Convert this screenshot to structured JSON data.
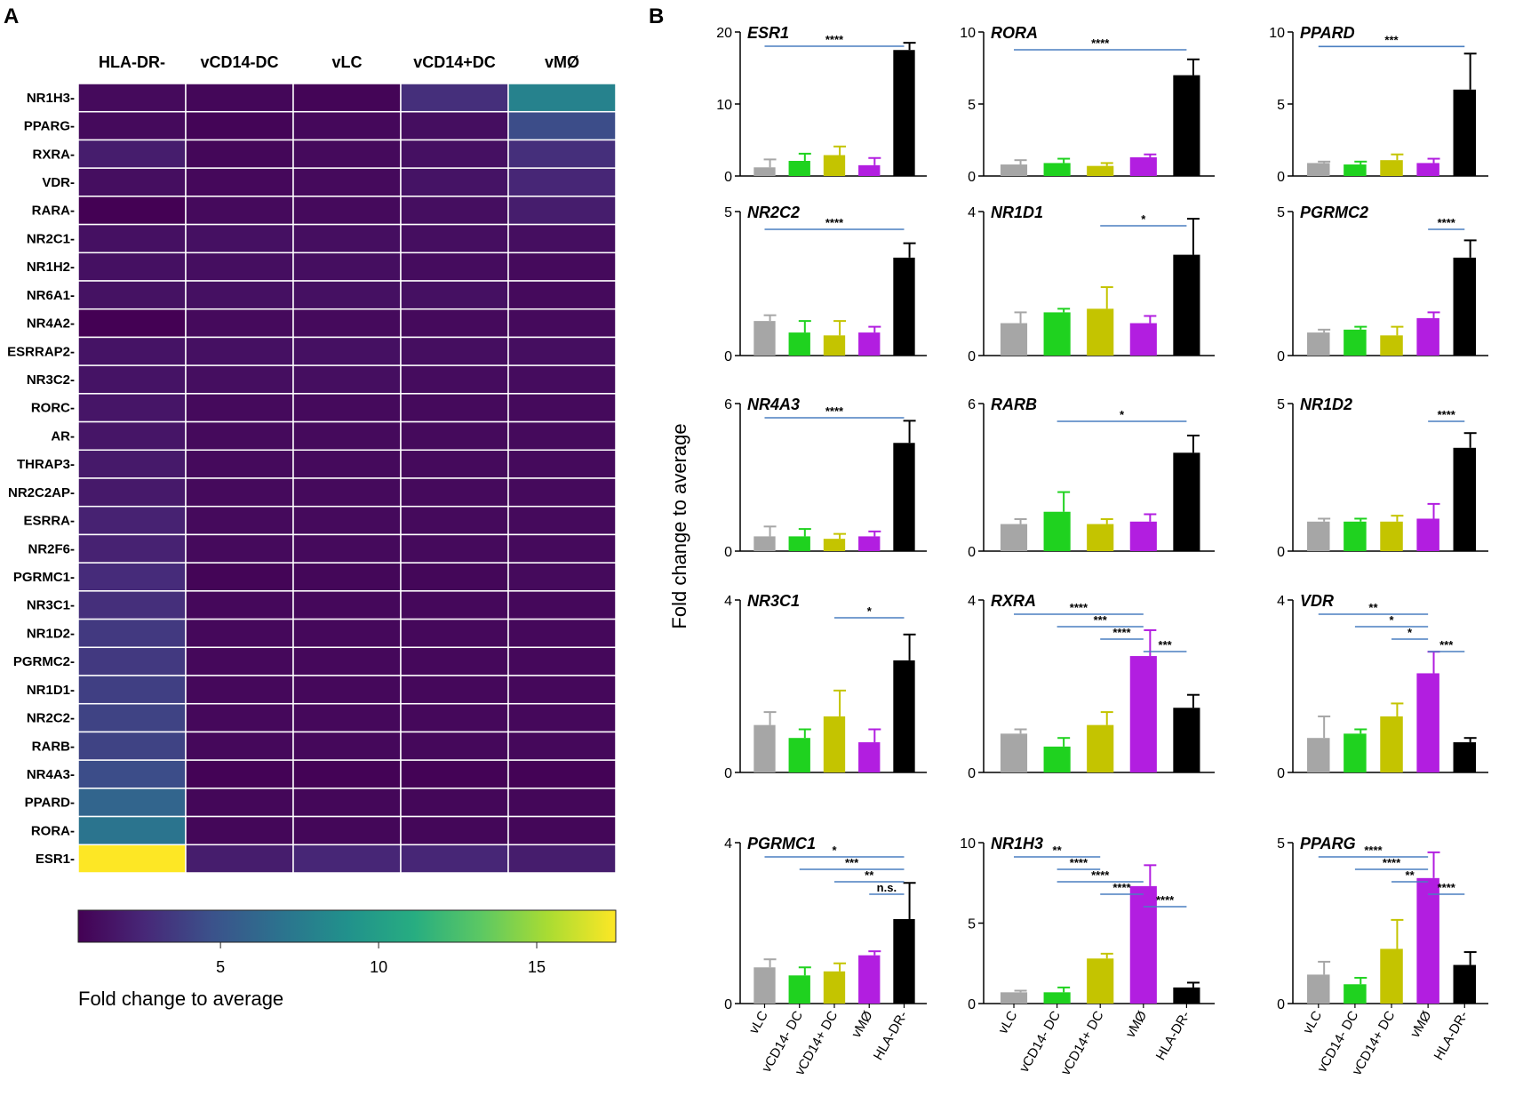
{
  "panel_a": {
    "letter": "A",
    "columns": [
      "HLA-DR-",
      "vCD14-DC",
      "vLC",
      "vCD14+DC",
      "vMØ"
    ],
    "colorbar": {
      "ticks": [
        "5",
        "10",
        "15"
      ],
      "label": "Fold change to average",
      "min": 0.5,
      "max": 17.5
    }
  },
  "panel_b": {
    "letter": "B",
    "y_label": "Fold change to average",
    "x_categories": [
      "vLC",
      "vCD14- DC",
      "vCD14+ DC",
      "vMØ",
      "HLA-DR-"
    ],
    "bar_colors": [
      "#a6a6a6",
      "#1fd21f",
      "#c4c400",
      "#b21ee0",
      "#000000"
    ]
  },
  "colors": {
    "bracket": "#4a7fc1",
    "grid_line": "#ffffff",
    "axis": "#000000"
  },
  "chart_data": [
    {
      "type": "heatmap",
      "title": "A",
      "columns": [
        "HLA-DR-",
        "vCD14-DC",
        "vLC",
        "vCD14+DC",
        "vMØ"
      ],
      "rows": [
        "NR1H3",
        "PPARG",
        "RXRA",
        "VDR",
        "RARA",
        "NR2C1",
        "NR1H2",
        "NR6A1",
        "NR4A2",
        "ESRRAP2",
        "NR3C2",
        "RORC",
        "AR",
        "THRAP3",
        "NR2C2AP",
        "ESRRA",
        "NR2F6",
        "PGRMC1",
        "NR3C1",
        "NR1D2",
        "PGRMC2",
        "NR1D1",
        "NR2C2",
        "RARB",
        "NR4A3",
        "PPARD",
        "RORA",
        "ESR1"
      ],
      "values": [
        [
          1.0,
          0.8,
          0.7,
          3.0,
          8.0
        ],
        [
          1.0,
          0.7,
          0.9,
          1.2,
          4.5
        ],
        [
          2.0,
          0.8,
          1.0,
          1.3,
          3.0
        ],
        [
          1.2,
          0.9,
          1.0,
          1.5,
          2.5
        ],
        [
          0.5,
          1.0,
          1.0,
          1.2,
          2.0
        ],
        [
          1.3,
          1.3,
          1.2,
          1.2,
          1.2
        ],
        [
          1.3,
          1.2,
          1.2,
          1.1,
          1.0
        ],
        [
          1.4,
          1.3,
          1.3,
          1.3,
          1.0
        ],
        [
          0.5,
          1.0,
          1.0,
          1.0,
          1.0
        ],
        [
          1.5,
          1.3,
          1.3,
          1.2,
          1.2
        ],
        [
          1.5,
          1.2,
          1.2,
          1.1,
          1.1
        ],
        [
          1.6,
          1.0,
          1.0,
          1.0,
          1.0
        ],
        [
          1.6,
          1.0,
          1.0,
          1.0,
          1.0
        ],
        [
          1.8,
          1.0,
          1.0,
          1.0,
          1.0
        ],
        [
          1.8,
          1.0,
          1.0,
          1.0,
          1.0
        ],
        [
          2.3,
          1.0,
          1.0,
          1.0,
          1.0
        ],
        [
          2.3,
          1.0,
          1.0,
          1.0,
          1.0
        ],
        [
          2.8,
          0.7,
          0.8,
          0.8,
          1.0
        ],
        [
          3.0,
          0.9,
          0.9,
          0.9,
          0.9
        ],
        [
          3.5,
          0.9,
          0.9,
          0.9,
          0.9
        ],
        [
          3.5,
          0.9,
          0.9,
          0.9,
          0.9
        ],
        [
          3.8,
          0.9,
          0.9,
          0.9,
          0.9
        ],
        [
          4.0,
          0.9,
          0.9,
          0.9,
          0.9
        ],
        [
          4.0,
          0.9,
          0.9,
          0.9,
          0.9
        ],
        [
          4.5,
          0.6,
          0.6,
          0.6,
          0.6
        ],
        [
          6.0,
          0.8,
          0.8,
          0.8,
          0.8
        ],
        [
          7.0,
          0.8,
          0.8,
          0.8,
          0.8
        ],
        [
          17.5,
          2.0,
          2.5,
          2.5,
          2.0
        ]
      ],
      "colorbar": {
        "ticks": [
          5,
          10,
          15
        ],
        "label": "Fold change to average"
      }
    },
    {
      "type": "bar",
      "title": "B",
      "categories": [
        "vLC",
        "vCD14- DC",
        "vCD14+ DC",
        "vMØ",
        "HLA-DR-"
      ],
      "ylabel": "Fold change to average",
      "panels": [
        {
          "gene": "ESR1",
          "ylim": [
            0,
            20
          ],
          "yticks": [
            0,
            10,
            20
          ],
          "values": [
            1.2,
            2.1,
            2.9,
            1.5,
            17.5
          ],
          "errors": [
            1.1,
            1.0,
            1.2,
            1.0,
            1.0
          ],
          "sig": [
            {
              "from": 0,
              "to": 4,
              "label": "****"
            }
          ]
        },
        {
          "gene": "RORA",
          "ylim": [
            0,
            10
          ],
          "yticks": [
            0,
            5,
            10
          ],
          "values": [
            0.8,
            0.9,
            0.7,
            1.3,
            7.0
          ],
          "errors": [
            0.3,
            0.3,
            0.2,
            0.2,
            1.1
          ],
          "sig": [
            {
              "from": 0,
              "to": 4,
              "label": "****"
            }
          ]
        },
        {
          "gene": "PPARD",
          "ylim": [
            0,
            10
          ],
          "yticks": [
            0,
            5,
            10
          ],
          "values": [
            0.9,
            0.8,
            1.1,
            0.9,
            6.0
          ],
          "errors": [
            0.1,
            0.2,
            0.4,
            0.3,
            2.5
          ],
          "sig": [
            {
              "from": 0,
              "to": 4,
              "label": "***"
            }
          ]
        },
        {
          "gene": "NR2C2",
          "ylim": [
            0,
            5
          ],
          "yticks": [
            0,
            5
          ],
          "values": [
            1.2,
            0.8,
            0.7,
            0.8,
            3.4
          ],
          "errors": [
            0.2,
            0.4,
            0.5,
            0.2,
            0.5
          ],
          "sig": [
            {
              "from": 0,
              "to": 4,
              "label": "****"
            }
          ]
        },
        {
          "gene": "NR1D1",
          "ylim": [
            0,
            4
          ],
          "yticks": [
            0,
            4
          ],
          "values": [
            0.9,
            1.2,
            1.3,
            0.9,
            2.8
          ],
          "errors": [
            0.3,
            0.1,
            0.6,
            0.2,
            1.0
          ],
          "sig": [
            {
              "from": 2,
              "to": 4,
              "label": "*"
            }
          ]
        },
        {
          "gene": "PGRMC2",
          "ylim": [
            0,
            5
          ],
          "yticks": [
            0,
            5
          ],
          "values": [
            0.8,
            0.9,
            0.7,
            1.3,
            3.4
          ],
          "errors": [
            0.1,
            0.1,
            0.3,
            0.2,
            0.6
          ],
          "sig": [
            {
              "from": 3,
              "to": 4,
              "label": "****"
            }
          ]
        },
        {
          "gene": "NR4A3",
          "ylim": [
            0,
            6
          ],
          "yticks": [
            0,
            6
          ],
          "values": [
            0.6,
            0.6,
            0.5,
            0.6,
            4.4
          ],
          "errors": [
            0.4,
            0.3,
            0.2,
            0.2,
            0.9
          ],
          "sig": [
            {
              "from": 0,
              "to": 4,
              "label": "****"
            }
          ]
        },
        {
          "gene": "RARB",
          "ylim": [
            0,
            6
          ],
          "yticks": [
            0,
            6
          ],
          "values": [
            1.1,
            1.6,
            1.1,
            1.2,
            4.0
          ],
          "errors": [
            0.2,
            0.8,
            0.2,
            0.3,
            0.7
          ],
          "sig": [
            {
              "from": 1,
              "to": 4,
              "label": "*"
            }
          ]
        },
        {
          "gene": "NR1D2",
          "ylim": [
            0,
            5
          ],
          "yticks": [
            0,
            5
          ],
          "values": [
            1.0,
            1.0,
            1.0,
            1.1,
            3.5
          ],
          "errors": [
            0.1,
            0.1,
            0.2,
            0.5,
            0.5
          ],
          "sig": [
            {
              "from": 3,
              "to": 4,
              "label": "****"
            }
          ]
        },
        {
          "gene": "NR3C1",
          "ylim": [
            0,
            4
          ],
          "yticks": [
            0,
            4
          ],
          "values": [
            1.1,
            0.8,
            1.3,
            0.7,
            2.6
          ],
          "errors": [
            0.3,
            0.2,
            0.6,
            0.3,
            0.6
          ],
          "sig": [
            {
              "from": 2,
              "to": 4,
              "label": "*"
            }
          ]
        },
        {
          "gene": "RXRA",
          "ylim": [
            0,
            4
          ],
          "yticks": [
            0,
            4
          ],
          "values": [
            0.9,
            0.6,
            1.1,
            2.7,
            1.5
          ],
          "errors": [
            0.1,
            0.2,
            0.3,
            0.6,
            0.3
          ],
          "sig": [
            {
              "from": 0,
              "to": 3,
              "label": "****"
            },
            {
              "from": 1,
              "to": 3,
              "label": "***"
            },
            {
              "from": 2,
              "to": 3,
              "label": "****"
            },
            {
              "from": 3,
              "to": 4,
              "label": "***"
            }
          ]
        },
        {
          "gene": "VDR",
          "ylim": [
            0,
            4
          ],
          "yticks": [
            0,
            4
          ],
          "values": [
            0.8,
            0.9,
            1.3,
            2.3,
            0.7
          ],
          "errors": [
            0.5,
            0.1,
            0.3,
            0.5,
            0.1
          ],
          "sig": [
            {
              "from": 0,
              "to": 3,
              "label": "**"
            },
            {
              "from": 1,
              "to": 3,
              "label": "*"
            },
            {
              "from": 2,
              "to": 3,
              "label": "*"
            },
            {
              "from": 3,
              "to": 4,
              "label": "***"
            }
          ]
        },
        {
          "gene": "PGRMC1",
          "ylim": [
            0,
            4
          ],
          "yticks": [
            0,
            4
          ],
          "values": [
            0.9,
            0.7,
            0.8,
            1.2,
            2.1
          ],
          "errors": [
            0.2,
            0.2,
            0.2,
            0.1,
            0.9
          ],
          "sig": [
            {
              "from": 0,
              "to": 4,
              "label": "*"
            },
            {
              "from": 1,
              "to": 4,
              "label": "***"
            },
            {
              "from": 2,
              "to": 4,
              "label": "**"
            },
            {
              "from": 3,
              "to": 4,
              "label": "n.s."
            }
          ]
        },
        {
          "gene": "NR1H3",
          "ylim": [
            0,
            10
          ],
          "yticks": [
            0,
            5,
            10
          ],
          "values": [
            0.7,
            0.7,
            2.8,
            7.3,
            1.0
          ],
          "errors": [
            0.1,
            0.3,
            0.3,
            1.3,
            0.3
          ],
          "sig": [
            {
              "from": 0,
              "to": 2,
              "label": "**"
            },
            {
              "from": 1,
              "to": 2,
              "label": "****"
            },
            {
              "from": 1,
              "to": 3,
              "label": "****"
            },
            {
              "from": 2,
              "to": 3,
              "label": "****"
            },
            {
              "from": 3,
              "to": 4,
              "label": "****"
            }
          ]
        },
        {
          "gene": "PPARG",
          "ylim": [
            0,
            5
          ],
          "yticks": [
            0,
            5
          ],
          "values": [
            0.9,
            0.6,
            1.7,
            3.9,
            1.2
          ],
          "errors": [
            0.4,
            0.2,
            0.9,
            0.8,
            0.4
          ],
          "sig": [
            {
              "from": 0,
              "to": 3,
              "label": "****"
            },
            {
              "from": 1,
              "to": 3,
              "label": "****"
            },
            {
              "from": 2,
              "to": 3,
              "label": "**"
            },
            {
              "from": 3,
              "to": 4,
              "label": "****"
            }
          ]
        }
      ]
    }
  ]
}
